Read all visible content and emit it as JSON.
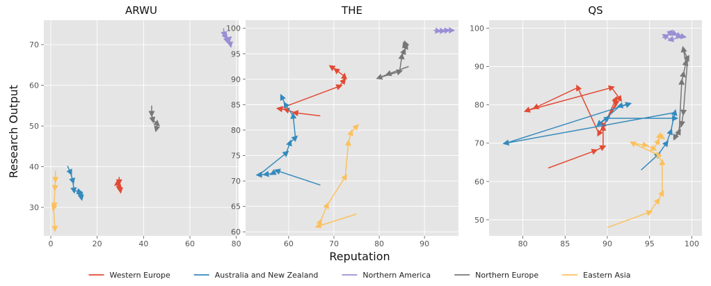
{
  "figure": {
    "xlabel": "Reputation",
    "ylabel": "Research Output"
  },
  "legend": {
    "placement": "bottom-center",
    "entries": [
      {
        "name": "Western Europe",
        "color": "#E24A33"
      },
      {
        "name": "Australia and New Zealand",
        "color": "#348ABD"
      },
      {
        "name": "Northern America",
        "color": "#988ED5"
      },
      {
        "name": "Northern Europe",
        "color": "#777777"
      },
      {
        "name": "Eastern Asia",
        "color": "#FBC15E"
      }
    ]
  },
  "chart_data": [
    {
      "type": "line",
      "title": "ARWU",
      "xlim": [
        -3,
        81
      ],
      "ylim": [
        23,
        76
      ],
      "xticks": [
        0,
        20,
        40,
        60,
        80
      ],
      "yticks": [
        30,
        40,
        50,
        60,
        70
      ],
      "grid": true,
      "series": [
        {
          "name": "Western Europe",
          "color": "#E24A33",
          "points": [
            [
              29.5,
              37.5
            ],
            [
              29.5,
              36.2
            ],
            [
              28.5,
              35.8
            ],
            [
              29.8,
              35.0
            ],
            [
              30.0,
              34.2
            ]
          ]
        },
        {
          "name": "Australia and New Zealand",
          "color": "#348ABD",
          "points": [
            [
              7.2,
              40.2
            ],
            [
              8.5,
              38.6
            ],
            [
              9.5,
              36.5
            ],
            [
              10.0,
              34.2
            ],
            [
              12.5,
              33.8
            ],
            [
              13.0,
              33.0
            ],
            [
              13.2,
              32.4
            ]
          ]
        },
        {
          "name": "Northern America",
          "color": "#988ED5",
          "points": [
            [
              74.5,
              74.0
            ],
            [
              74.8,
              72.5
            ],
            [
              75.5,
              72.0
            ],
            [
              76.0,
              71.0
            ],
            [
              77.0,
              71.5
            ],
            [
              77.5,
              70.0
            ]
          ]
        },
        {
          "name": "Northern Europe",
          "color": "#777777",
          "points": [
            [
              43.5,
              55.0
            ],
            [
              43.5,
              53.0
            ],
            [
              44.0,
              51.5
            ],
            [
              46.0,
              50.5
            ],
            [
              45.5,
              49.3
            ]
          ]
        },
        {
          "name": "Eastern Asia",
          "color": "#FBC15E",
          "points": [
            [
              2.0,
              39.0
            ],
            [
              2.0,
              36.8
            ],
            [
              1.8,
              34.8
            ],
            [
              1.5,
              30.5
            ],
            [
              1.2,
              29.8
            ],
            [
              1.8,
              24.8
            ]
          ]
        }
      ]
    },
    {
      "type": "line",
      "title": "THE",
      "xlim": [
        50.5,
        97.5
      ],
      "ylim": [
        59.2,
        101.6
      ],
      "xticks": [
        60,
        70,
        80,
        90
      ],
      "yticks": [
        60,
        65,
        70,
        75,
        80,
        85,
        90,
        95,
        100
      ],
      "grid": true,
      "series": [
        {
          "name": "Western Europe",
          "color": "#E24A33",
          "points": [
            [
              67.0,
              82.8
            ],
            [
              61.5,
              83.4
            ],
            [
              59.5,
              84.0
            ],
            [
              58.0,
              84.2
            ],
            [
              71.2,
              88.6
            ],
            [
              72.2,
              89.7
            ],
            [
              72.3,
              90.6
            ],
            [
              70.5,
              91.8
            ],
            [
              69.5,
              92.4
            ]
          ]
        },
        {
          "name": "Australia and New Zealand",
          "color": "#348ABD",
          "points": [
            [
              67.0,
              69.2
            ],
            [
              57.5,
              72.0
            ],
            [
              56.5,
              71.5
            ],
            [
              55.0,
              71.3
            ],
            [
              53.5,
              71.2
            ],
            [
              59.5,
              75.5
            ],
            [
              60.3,
              77.5
            ],
            [
              61.5,
              78.5
            ],
            [
              61.0,
              82.8
            ],
            [
              59.3,
              85.0
            ],
            [
              58.5,
              86.5
            ]
          ]
        },
        {
          "name": "Northern America",
          "color": "#988ED5",
          "points": [
            [
              92.0,
              99.6
            ],
            [
              93.0,
              99.5
            ],
            [
              94.0,
              99.5
            ],
            [
              95.0,
              99.6
            ],
            [
              96.0,
              99.6
            ]
          ]
        },
        {
          "name": "Northern Europe",
          "color": "#777777",
          "points": [
            [
              86.5,
              92.5
            ],
            [
              82.0,
              91.0
            ],
            [
              80.0,
              90.3
            ],
            [
              84.5,
              91.5
            ],
            [
              85.0,
              94.5
            ],
            [
              85.5,
              95.5
            ],
            [
              86.0,
              96.5
            ],
            [
              85.8,
              97.0
            ],
            [
              85.5,
              96.6
            ]
          ]
        },
        {
          "name": "Eastern Asia",
          "color": "#FBC15E",
          "points": [
            [
              75.0,
              63.5
            ],
            [
              66.5,
              61.1
            ],
            [
              67.0,
              62.0
            ],
            [
              68.5,
              65.2
            ],
            [
              72.5,
              70.8
            ],
            [
              73.2,
              77.5
            ],
            [
              73.8,
              79.5
            ],
            [
              75.0,
              80.7
            ]
          ]
        }
      ]
    },
    {
      "type": "line",
      "title": "QS",
      "xlim": [
        76.0,
        101.2
      ],
      "ylim": [
        45.8,
        102.1
      ],
      "xticks": [
        80,
        85,
        90,
        95,
        100
      ],
      "yticks": [
        50,
        60,
        70,
        80,
        90,
        100
      ],
      "grid": true,
      "series": [
        {
          "name": "Western Europe",
          "color": "#E24A33",
          "points": [
            [
              83.0,
              63.5
            ],
            [
              88.5,
              68.0
            ],
            [
              89.5,
              69.0
            ],
            [
              89.5,
              74.0
            ],
            [
              91.0,
              81.5
            ],
            [
              91.0,
              80.3
            ],
            [
              89.0,
              72.5
            ],
            [
              86.5,
              84.5
            ],
            [
              81.5,
              79.3
            ],
            [
              80.5,
              78.5
            ],
            [
              90.5,
              84.5
            ],
            [
              91.5,
              81.5
            ],
            [
              89.5,
              74.5
            ]
          ]
        },
        {
          "name": "Australia and New Zealand",
          "color": "#348ABD",
          "points": [
            [
              94.0,
              63.0
            ],
            [
              96.0,
              67.0
            ],
            [
              97.0,
              70.0
            ],
            [
              97.5,
              73.0
            ],
            [
              98.0,
              78.0
            ],
            [
              78.0,
              70.0
            ],
            [
              92.5,
              80.2
            ],
            [
              91.5,
              79.7
            ],
            [
              89.0,
              75.0
            ],
            [
              90.0,
              76.5
            ],
            [
              98.0,
              76.5
            ]
          ]
        },
        {
          "name": "Northern America",
          "color": "#988ED5",
          "points": [
            [
              96.5,
              97.5
            ],
            [
              97.0,
              98.0
            ],
            [
              97.5,
              99.0
            ],
            [
              98.0,
              98.5
            ],
            [
              98.5,
              98.0
            ],
            [
              99.0,
              97.8
            ],
            [
              97.5,
              97.0
            ],
            [
              96.8,
              98.0
            ]
          ]
        },
        {
          "name": "Northern Europe",
          "color": "#777777",
          "points": [
            [
              98.0,
              71.0
            ],
            [
              98.5,
              73.0
            ],
            [
              98.8,
              86.0
            ],
            [
              99.0,
              88.0
            ],
            [
              99.3,
              91.0
            ],
            [
              99.0,
              94.5
            ],
            [
              99.5,
              92.0
            ],
            [
              99.0,
              78.0
            ],
            [
              98.8,
              75.0
            ],
            [
              98.0,
              71.5
            ]
          ]
        },
        {
          "name": "Eastern Asia",
          "color": "#FBC15E",
          "points": [
            [
              90.0,
              48.0
            ],
            [
              95.0,
              52.0
            ],
            [
              96.0,
              55.0
            ],
            [
              96.5,
              57.0
            ],
            [
              96.5,
              65.0
            ],
            [
              96.0,
              67.0
            ],
            [
              93.0,
              70.0
            ],
            [
              94.5,
              69.5
            ],
            [
              95.5,
              68.5
            ],
            [
              96.0,
              70.5
            ],
            [
              96.2,
              72.0
            ],
            [
              96.5,
              71.5
            ]
          ]
        }
      ]
    }
  ]
}
